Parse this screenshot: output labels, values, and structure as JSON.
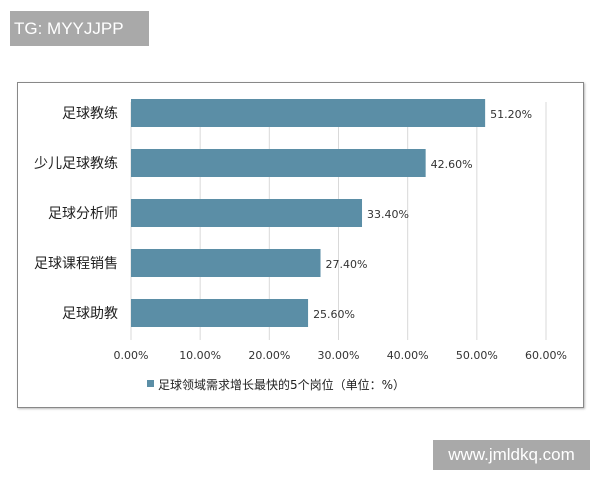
{
  "watermark_top": "TG: MYYJJPP",
  "watermark_bottom": "www.jmldkq.com",
  "chart_data": {
    "type": "bar",
    "orientation": "horizontal",
    "categories": [
      "足球教练",
      "少儿足球教练",
      "足球分析师",
      "足球课程销售",
      "足球助教"
    ],
    "values": [
      51.2,
      42.6,
      33.4,
      27.4,
      25.6
    ],
    "data_labels": [
      "51.20%",
      "42.60%",
      "33.40%",
      "27.40%",
      "25.60%"
    ],
    "xlim": [
      0,
      60
    ],
    "x_ticks": [
      "0.00%",
      "10.00%",
      "20.00%",
      "30.00%",
      "40.00%",
      "50.00%",
      "60.00%"
    ],
    "grid": "vertical",
    "legend": {
      "placement": "bottom",
      "entries": [
        "足球领域需求增长最快的5个岗位（单位：%）"
      ]
    },
    "colors": {
      "bar": "#5b8ea6"
    }
  }
}
